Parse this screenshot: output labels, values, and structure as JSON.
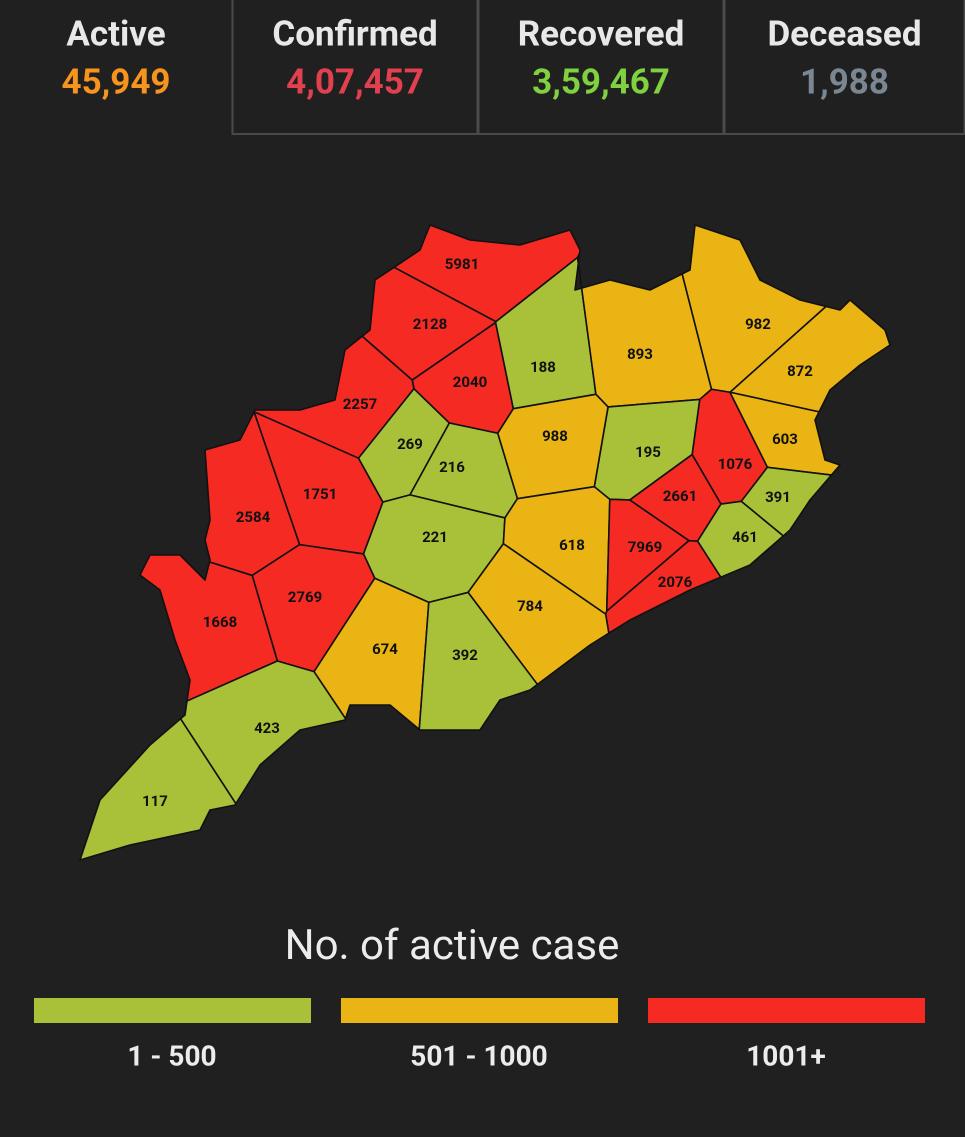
{
  "header": {
    "stats": [
      {
        "label": "Active",
        "value": "45,949",
        "color": "#f7941d"
      },
      {
        "label": "Confirmed",
        "value": "4,07,457",
        "color": "#e2404f"
      },
      {
        "label": "Recovered",
        "value": "3,59,467",
        "color": "#7fd13f"
      },
      {
        "label": "Deceased",
        "value": "1,988",
        "color": "#7a8792"
      }
    ]
  },
  "map": {
    "districts": [
      {
        "value": 5981,
        "color": "#f52a23"
      },
      {
        "value": 2128,
        "color": "#f52a23"
      },
      {
        "value": 2040,
        "color": "#f52a23"
      },
      {
        "value": 2257,
        "color": "#f52a23"
      },
      {
        "value": 188,
        "color": "#a8c139"
      },
      {
        "value": 893,
        "color": "#e9b414"
      },
      {
        "value": 982,
        "color": "#e9b414"
      },
      {
        "value": 872,
        "color": "#e9b414"
      },
      {
        "value": 603,
        "color": "#e9b414"
      },
      {
        "value": 1076,
        "color": "#f52a23"
      },
      {
        "value": 195,
        "color": "#a8c139"
      },
      {
        "value": 988,
        "color": "#e9b414"
      },
      {
        "value": 269,
        "color": "#a8c139"
      },
      {
        "value": 216,
        "color": "#a8c139"
      },
      {
        "value": 1751,
        "color": "#f52a23"
      },
      {
        "value": 2584,
        "color": "#f52a23"
      },
      {
        "value": 221,
        "color": "#a8c139"
      },
      {
        "value": 618,
        "color": "#e9b414"
      },
      {
        "value": 2661,
        "color": "#f52a23"
      },
      {
        "value": 391,
        "color": "#a8c139"
      },
      {
        "value": 461,
        "color": "#a8c139"
      },
      {
        "value": 7969,
        "color": "#f52a23"
      },
      {
        "value": 2076,
        "color": "#f52a23"
      },
      {
        "value": 784,
        "color": "#e9b414"
      },
      {
        "value": 2769,
        "color": "#f52a23"
      },
      {
        "value": 1668,
        "color": "#f52a23"
      },
      {
        "value": 674,
        "color": "#e9b414"
      },
      {
        "value": 392,
        "color": "#a8c139"
      },
      {
        "value": 423,
        "color": "#a8c139"
      },
      {
        "value": 117,
        "color": "#a8c139"
      }
    ]
  },
  "legend": {
    "title": "No. of active case",
    "items": [
      {
        "label": "1 - 500",
        "color": "#a8c139"
      },
      {
        "label": "501 - 1000",
        "color": "#e9b414"
      },
      {
        "label": "1001+",
        "color": "#f52a23"
      }
    ]
  }
}
